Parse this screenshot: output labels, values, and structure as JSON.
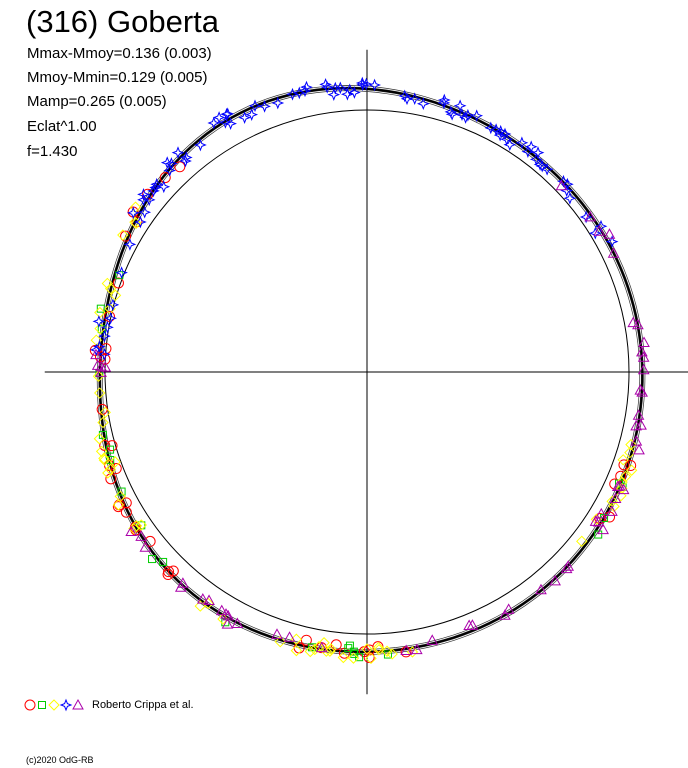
{
  "chart_data": {
    "type": "scatter",
    "title": "(316) Goberta",
    "stats": [
      "Mmax-Mmoy=0.136 (0.003)",
      "Mmoy-Mmin=0.129 (0.005)",
      "Mamp=0.265 (0.005)",
      "Eclat^1.00",
      "f=1.430"
    ],
    "xlim": [
      -1.23,
      1.23
    ],
    "ylim": [
      -1.23,
      1.23
    ],
    "reference_circle_radius": 1.0,
    "lightcurve_harmonics": [
      [
        2,
        0.021,
        0.35
      ],
      [
        3,
        0.017,
        1.2
      ],
      [
        4,
        0.007,
        2.4
      ]
    ],
    "lightcurve_base_radius": 1.06,
    "legend": {
      "label": "Roberto Crippa et al.",
      "markers": [
        "circle",
        "square",
        "diamond",
        "star",
        "triangle"
      ]
    },
    "series": [
      {
        "marker": "circle",
        "color": "#ff0000",
        "phase_ranges": [
          [
            108,
            126
          ],
          [
            168,
            200
          ],
          [
            222,
            292
          ],
          [
            298,
            318
          ]
        ],
        "count": 44,
        "seed": 11
      },
      {
        "marker": "square",
        "color": "#00cc00",
        "phase_ranges": [
          [
            108,
            132
          ],
          [
            172,
            218
          ],
          [
            224,
            262
          ],
          [
            268,
            292
          ]
        ],
        "count": 24,
        "seed": 23
      },
      {
        "marker": "diamond",
        "color": "#ffff00",
        "phase_ranges": [
          [
            104,
            136
          ],
          [
            170,
            228
          ],
          [
            232,
            292
          ],
          [
            296,
            306
          ]
        ],
        "count": 62,
        "seed": 37
      },
      {
        "marker": "star",
        "color": "#0000ff",
        "phase_ranges": [
          [
            0,
            62
          ],
          [
            272,
            360
          ]
        ],
        "count": 90,
        "seed": 51
      },
      {
        "marker": "triangle",
        "color": "#aa00aa",
        "phase_ranges": [
          [
            44,
            106
          ],
          [
            112,
            178
          ],
          [
            186,
            236
          ],
          [
            264,
            282
          ]
        ],
        "count": 58,
        "seed": 73
      }
    ]
  },
  "copyright": "(c)2020 OdG-RB"
}
